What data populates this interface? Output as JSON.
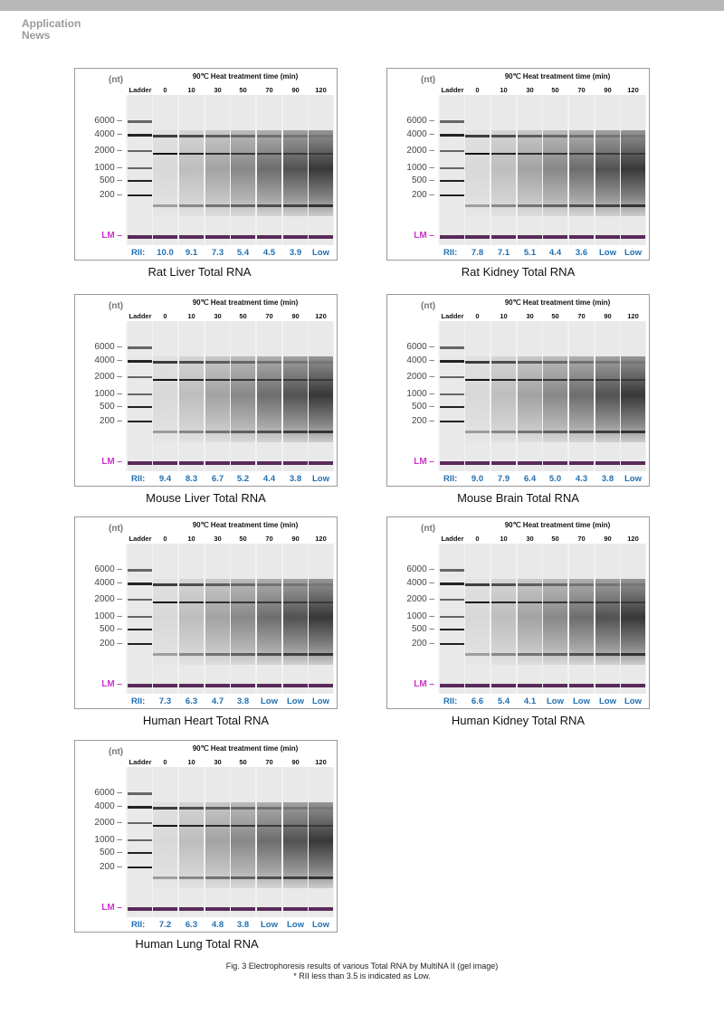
{
  "brand": {
    "line1": "Application",
    "line2": "News"
  },
  "nt_label": "(nt)",
  "lane_header": "90℃ Heat treatment time (min)",
  "lanes": [
    "Ladder",
    "0",
    "10",
    "30",
    "50",
    "70",
    "90",
    "120"
  ],
  "ladder_ticks": [
    "6000 –",
    "4000 –",
    "2000 –",
    "1000 –",
    "500 –",
    "200 –"
  ],
  "lm_label": "LM –",
  "rii_label": "RII:",
  "panels": [
    {
      "title": "Rat Liver Total RNA",
      "rii": [
        "10.0",
        "9.1",
        "7.3",
        "5.4",
        "4.5",
        "3.9",
        "Low"
      ]
    },
    {
      "title": "Rat Kidney Total RNA",
      "rii": [
        "7.8",
        "7.1",
        "5.1",
        "4.4",
        "3.6",
        "Low",
        "Low"
      ]
    },
    {
      "title": "Mouse Liver Total RNA",
      "rii": [
        "9.4",
        "8.3",
        "6.7",
        "5.2",
        "4.4",
        "3.8",
        "Low"
      ]
    },
    {
      "title": "Mouse Brain Total RNA",
      "rii": [
        "9.0",
        "7.9",
        "6.4",
        "5.0",
        "4.3",
        "3.8",
        "Low"
      ]
    },
    {
      "title": "Human Heart Total RNA",
      "rii": [
        "7.3",
        "6.3",
        "4.7",
        "3.8",
        "Low",
        "Low",
        "Low"
      ]
    },
    {
      "title": "Human Kidney Total RNA",
      "rii": [
        "6.6",
        "5.4",
        "4.1",
        "Low",
        "Low",
        "Low",
        "Low"
      ]
    },
    {
      "title": "Human Lung Total RNA",
      "rii": [
        "7.2",
        "6.3",
        "4.8",
        "3.8",
        "Low",
        "Low",
        "Low"
      ]
    }
  ],
  "caption": {
    "line1": "Fig. 3 Electrophoresis results of various Total RNA by MultiNA II (gel image)",
    "line2": "* RII less than 3.5 is indicated as Low."
  },
  "colors": {
    "rii": "#1f6fb2",
    "lm": "#cc33cc",
    "lm_band": "#5a2a5a"
  }
}
